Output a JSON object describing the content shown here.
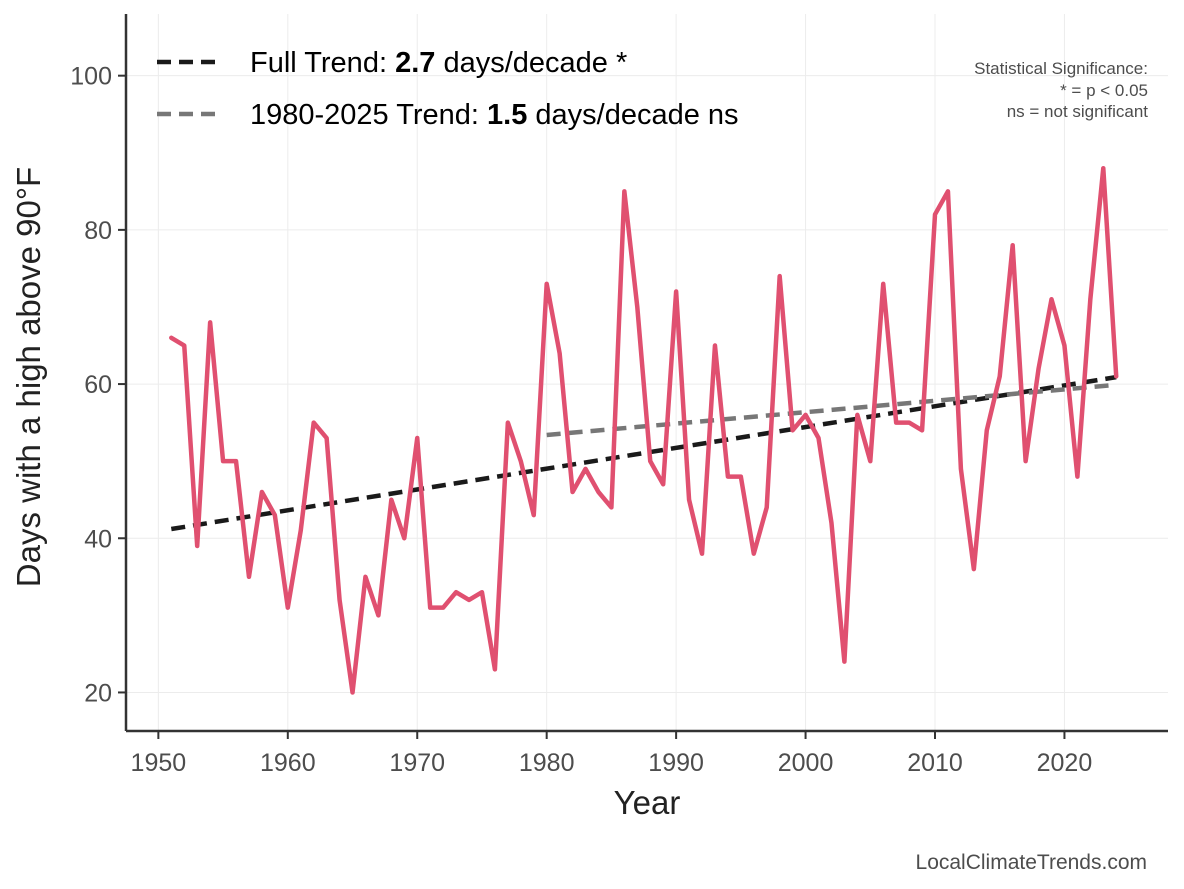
{
  "chart_data": {
    "type": "line",
    "xlabel": "Year",
    "ylabel": "Days with a high above 90°F",
    "xlim": [
      1947.5,
      2028
    ],
    "ylim": [
      15,
      108
    ],
    "x_ticks": [
      1950,
      1960,
      1970,
      1980,
      1990,
      2000,
      2010,
      2020
    ],
    "y_ticks": [
      20,
      40,
      60,
      80,
      100
    ],
    "series": [
      {
        "name": "Days above 90°F",
        "color": "#e05070",
        "x": [
          1951,
          1952,
          1953,
          1954,
          1955,
          1956,
          1957,
          1958,
          1959,
          1960,
          1961,
          1962,
          1963,
          1964,
          1965,
          1966,
          1967,
          1968,
          1969,
          1970,
          1971,
          1972,
          1973,
          1974,
          1975,
          1976,
          1977,
          1978,
          1979,
          1980,
          1981,
          1982,
          1983,
          1984,
          1985,
          1986,
          1987,
          1988,
          1989,
          1990,
          1991,
          1992,
          1993,
          1994,
          1995,
          1996,
          1997,
          1998,
          1999,
          2000,
          2001,
          2002,
          2003,
          2004,
          2005,
          2006,
          2007,
          2008,
          2009,
          2010,
          2011,
          2012,
          2013,
          2014,
          2015,
          2016,
          2017,
          2018,
          2019,
          2020,
          2021,
          2022,
          2023,
          2024
        ],
        "values": [
          66,
          65,
          39,
          68,
          50,
          50,
          35,
          46,
          43,
          31,
          41,
          55,
          53,
          32,
          20,
          35,
          30,
          45,
          40,
          53,
          31,
          31,
          33,
          32,
          33,
          23,
          55,
          50,
          43,
          73,
          64,
          46,
          49,
          46,
          44,
          85,
          70,
          50,
          47,
          72,
          45,
          38,
          65,
          48,
          48,
          38,
          44,
          74,
          54,
          56,
          53,
          42,
          24,
          56,
          50,
          73,
          55,
          55,
          54,
          82,
          85,
          49,
          36,
          54,
          61,
          78,
          50,
          62,
          71,
          65,
          48,
          71,
          88,
          61
        ]
      }
    ],
    "trend_lines": [
      {
        "name": "Full Trend",
        "color": "#1a1a1a",
        "x": [
          1951,
          2024
        ],
        "values": [
          41.2,
          60.9
        ]
      },
      {
        "name": "1980-2025 Trend",
        "color": "#777777",
        "x": [
          1980,
          2024
        ],
        "values": [
          53.4,
          59.9
        ]
      }
    ],
    "legend": [
      {
        "prefix": "Full Trend: ",
        "value": "2.7",
        "suffix": " days/decade *"
      },
      {
        "prefix": "1980-2025 Trend: ",
        "value": "1.5",
        "suffix": " days/decade ns"
      }
    ],
    "significance_note": [
      "Statistical Significance:",
      "* = p < 0.05",
      "ns = not significant"
    ],
    "source": "LocalClimateTrends.com"
  }
}
